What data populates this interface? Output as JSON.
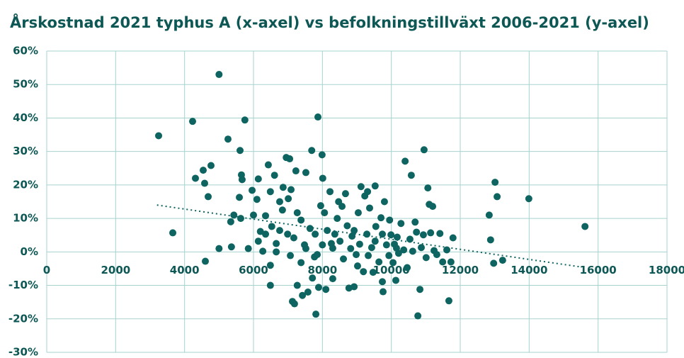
{
  "chart_data": {
    "type": "scatter",
    "title": "Årskostnad 2021 typhus A (x-axel) vs befolkningstillväxt 2006-2021 (y-axel)",
    "color": "#0d6460",
    "grid": true,
    "xlim": [
      0,
      18000
    ],
    "xticks": [
      0,
      2000,
      4000,
      6000,
      8000,
      10000,
      12000,
      14000,
      16000,
      18000
    ],
    "ylim": [
      -30,
      60
    ],
    "yticks": [
      {
        "value": -30,
        "label": "-30%"
      },
      {
        "value": -20,
        "label": "-20%"
      },
      {
        "value": -10,
        "label": "-10%"
      },
      {
        "value": 0,
        "label": "0%"
      },
      {
        "value": 10,
        "label": "10%"
      },
      {
        "value": 20,
        "label": "20%"
      },
      {
        "value": 30,
        "label": "30%"
      },
      {
        "value": 40,
        "label": "40%"
      },
      {
        "value": 50,
        "label": "50%"
      },
      {
        "value": 60,
        "label": "60%"
      }
    ],
    "x": [
      3247,
      3658,
      4233,
      4315,
      4541,
      4582,
      4603,
      4685,
      4767,
      5000,
      5000,
      5260,
      5340,
      5430,
      5360,
      5610,
      5650,
      5670,
      5590,
      5750,
      5630,
      5850,
      5960,
      6000,
      6100,
      6140,
      6200,
      6270,
      6350,
      6430,
      6490,
      6530,
      6490,
      6490,
      6610,
      6660,
      6760,
      6840,
      6860,
      6950,
      7050,
      6990,
      7010,
      7090,
      7130,
      7190,
      7230,
      7270,
      7380,
      7420,
      7520,
      7520,
      7580,
      7640,
      7690,
      7710,
      7770,
      7810,
      7850,
      7870,
      7890,
      7950,
      7990,
      8010,
      8060,
      8100,
      8140,
      8220,
      8260,
      8300,
      8360,
      8430,
      8470,
      8570,
      8610,
      8670,
      8720,
      8770,
      8820,
      8860,
      8920,
      8980,
      9040,
      9080,
      9120,
      9190,
      9230,
      9290,
      9310,
      9370,
      9430,
      9470,
      9530,
      9550,
      9640,
      9700,
      9740,
      9760,
      9800,
      9860,
      9930,
      9990,
      10050,
      10090,
      10130,
      10170,
      10210,
      10280,
      10360,
      10400,
      10460,
      10540,
      10580,
      10620,
      10690,
      10730,
      10770,
      10830,
      10870,
      10930,
      10950,
      11010,
      11060,
      11100,
      11140,
      11200,
      11240,
      11320,
      11410,
      11490,
      11610,
      11730,
      11670,
      11790,
      12840,
      12880,
      12970,
      13010,
      13070,
      13230,
      13990,
      15620,
      6760,
      7170,
      7480,
      6140,
      6350,
      7270,
      7790,
      8300,
      8920,
      9330,
      9740,
      10150,
      6660,
      7070,
      7380,
      8000,
      8510,
      9020,
      9530,
      9950
    ],
    "y": [
      34.7,
      5.7,
      39,
      22,
      24.4,
      20.5,
      -2.8,
      16.5,
      25.8,
      53,
      1,
      33.7,
      9,
      11,
      1.5,
      30.3,
      23,
      21.6,
      16.3,
      39.4,
      10,
      1,
      18.4,
      11,
      15.7,
      21.8,
      6.1,
      0.2,
      10.8,
      26,
      18,
      7.6,
      -4,
      -10,
      22.9,
      2.5,
      15,
      12.5,
      19.3,
      28.2,
      27.8,
      5.3,
      15.9,
      18.6,
      -14.8,
      -15.5,
      24.2,
      -10,
      9.5,
      -13,
      23.7,
      1,
      -12,
      7,
      30.3,
      -7.8,
      -1.5,
      -18.6,
      -0.8,
      40.3,
      -10.6,
      13.8,
      29,
      22,
      11.7,
      -11.2,
      6.4,
      18,
      2.5,
      -8,
      5.3,
      10,
      15,
      13.6,
      -2.1,
      17.4,
      7.8,
      -10.8,
      1,
      4.7,
      -10.4,
      -0.8,
      11.7,
      2.3,
      19.5,
      -5.9,
      16.7,
      5.3,
      18,
      13.1,
      1.3,
      -6.1,
      19.7,
      7.6,
      -3,
      10.2,
      -8.9,
      -11.9,
      15,
      2.1,
      -1.1,
      5.1,
      -3.2,
      2.3,
      -8.5,
      4.4,
      -0.4,
      8.5,
      0.6,
      27.1,
      -4.7,
      3.8,
      22.9,
      0.2,
      8.9,
      5.9,
      -19.1,
      -11.2,
      1.3,
      5.1,
      30.5,
      -1.7,
      19.1,
      14.2,
      5.7,
      13.6,
      0.4,
      -0.8,
      5.5,
      -3,
      0.6,
      -3,
      -14.6,
      4.2,
      11,
      3.6,
      -3.4,
      20.8,
      16.5,
      -2.5,
      15.9,
      7.6,
      6.4,
      4.2,
      2.1,
      3.2,
      5.3,
      11.7,
      5.3,
      1.1,
      6.4,
      -1.1,
      5.3,
      1.1,
      0,
      -1.1,
      -3.2,
      2.1,
      3.2,
      -4.2,
      3.2,
      9.5
    ],
    "trendline": {
      "x": [
        3200,
        15500
      ],
      "y": [
        14,
        -4.5
      ]
    }
  }
}
